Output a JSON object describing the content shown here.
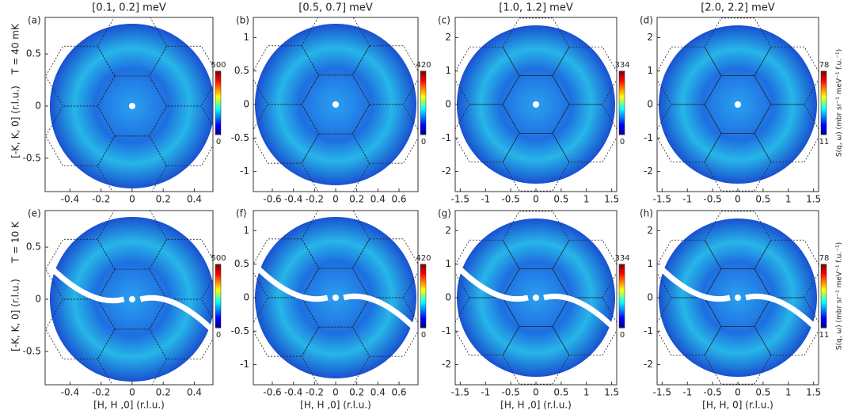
{
  "chart_data": [
    {
      "type": "heatmap",
      "panel_label": "(a)",
      "title": "[0.1, 0.2] meV",
      "ylabel": "[-K, K, 0] (r.l.u.)",
      "row_label": "T = 40 mK",
      "xlim": [
        -0.56,
        0.52
      ],
      "xticks": [
        -0.4,
        -0.2,
        0,
        0.2,
        0.4
      ],
      "ylim": [
        -0.82,
        0.85
      ],
      "yticks": [
        -0.5,
        0,
        0.5
      ],
      "colorbar": {
        "lim": [
          0,
          500
        ],
        "ticks": [
          0,
          500
        ]
      }
    },
    {
      "type": "heatmap",
      "panel_label": "(b)",
      "title": "[0.5, 0.7] meV",
      "xlim": [
        -0.78,
        0.78
      ],
      "xticks": [
        -0.6,
        -0.4,
        -0.2,
        0,
        0.2,
        0.4,
        0.6
      ],
      "ylim": [
        -1.3,
        1.3
      ],
      "yticks": [
        -1,
        -0.5,
        0,
        0.5,
        1
      ],
      "colorbar": {
        "lim": [
          0,
          420
        ],
        "ticks": [
          0,
          420
        ]
      }
    },
    {
      "type": "heatmap",
      "panel_label": "(c)",
      "title": "[1.0, 1.2] meV",
      "xlim": [
        -1.6,
        1.6
      ],
      "xticks": [
        -1.5,
        -1,
        -0.5,
        0,
        0.5,
        1,
        1.5
      ],
      "ylim": [
        -2.6,
        2.6
      ],
      "yticks": [
        -2,
        -1,
        0,
        1,
        2
      ],
      "colorbar": {
        "lim": [
          0,
          334
        ],
        "ticks": [
          0,
          334
        ]
      }
    },
    {
      "type": "heatmap",
      "panel_label": "(d)",
      "title": "[2.0, 2.2] meV",
      "xlim": [
        -1.6,
        1.6
      ],
      "xticks": [
        -1.5,
        -1,
        -0.5,
        0,
        0.5,
        1,
        1.5
      ],
      "ylim": [
        -2.6,
        2.6
      ],
      "yticks": [
        -2,
        -1,
        0,
        1,
        2
      ],
      "colorbar": {
        "lim": [
          11,
          78
        ],
        "ticks": [
          11,
          78
        ]
      },
      "colorbar_label": "S(q, ω) (mbr sr⁻¹ meV⁻¹ f.u.⁻¹)"
    },
    {
      "type": "heatmap",
      "panel_label": "(e)",
      "xlabel": "[H, H ,0] (r.l.u.)",
      "ylabel": "[-K, K, 0] (r.l.u.)",
      "row_label": "T = 10 K",
      "xlim": [
        -0.56,
        0.52
      ],
      "xticks": [
        -0.4,
        -0.2,
        0,
        0.2,
        0.4
      ],
      "ylim": [
        -0.82,
        0.85
      ],
      "yticks": [
        -0.5,
        0,
        0.5
      ],
      "colorbar": {
        "lim": [
          0,
          500
        ],
        "ticks": [
          0,
          500
        ]
      }
    },
    {
      "type": "heatmap",
      "panel_label": "(f)",
      "xlabel": "[H, H ,0] (r.l.u.)",
      "xlim": [
        -0.78,
        0.78
      ],
      "xticks": [
        -0.6,
        -0.4,
        -0.2,
        0,
        0.2,
        0.4,
        0.6
      ],
      "ylim": [
        -1.3,
        1.3
      ],
      "yticks": [
        -1,
        -0.5,
        0,
        0.5,
        1
      ],
      "colorbar": {
        "lim": [
          0,
          420
        ],
        "ticks": [
          0,
          420
        ]
      }
    },
    {
      "type": "heatmap",
      "panel_label": "(g)",
      "xlabel": "[H, H ,0] (r.l.u.)",
      "xlim": [
        -1.6,
        1.6
      ],
      "xticks": [
        -1.5,
        -1,
        -0.5,
        0,
        0.5,
        1,
        1.5
      ],
      "ylim": [
        -2.6,
        2.6
      ],
      "yticks": [
        -2,
        -1,
        0,
        1,
        2
      ],
      "colorbar": {
        "lim": [
          0,
          334
        ],
        "ticks": [
          0,
          334
        ]
      }
    },
    {
      "type": "heatmap",
      "panel_label": "(h)",
      "xlabel": "[H, H, 0] (r.l.u.)",
      "xlim": [
        -1.6,
        1.6
      ],
      "xticks": [
        -1.5,
        -1,
        -0.5,
        0,
        0.5,
        1,
        1.5
      ],
      "ylim": [
        -2.6,
        2.6
      ],
      "yticks": [
        -2,
        -1,
        0,
        1,
        2
      ],
      "colorbar": {
        "lim": [
          11,
          78
        ],
        "ticks": [
          11,
          78
        ]
      },
      "colorbar_label": "S(q, ω) (mbr sr⁻¹ meV⁻¹ f.u.⁻¹)"
    }
  ]
}
